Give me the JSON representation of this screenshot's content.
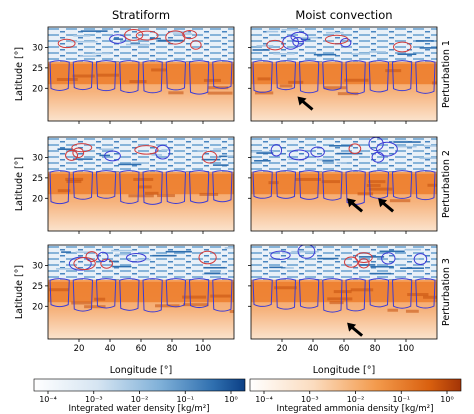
{
  "figure": {
    "column_titles": [
      "Stratiform",
      "Moist convection"
    ],
    "row_labels": [
      "Perturbation 1",
      "Perturbation 2",
      "Perturbation 3"
    ],
    "xlabel": "Longitude [°]",
    "ylabel": "Latitude [°]"
  },
  "chart_data": {
    "type": "heatmap",
    "panels": [
      {
        "row": 1,
        "column": "Stratiform",
        "arrows": []
      },
      {
        "row": 1,
        "column": "Moist convection",
        "arrows": [
          {
            "lon": 30,
            "lat": 18
          }
        ]
      },
      {
        "row": 2,
        "column": "Stratiform",
        "arrows": []
      },
      {
        "row": 2,
        "column": "Moist convection",
        "arrows": [
          {
            "lon": 62,
            "lat": 20
          },
          {
            "lon": 82,
            "lat": 20
          }
        ]
      },
      {
        "row": 3,
        "column": "Stratiform",
        "arrows": []
      },
      {
        "row": 3,
        "column": "Moist convection",
        "arrows": [
          {
            "lon": 62,
            "lat": 16
          }
        ]
      }
    ],
    "xlim": [
      0,
      120
    ],
    "ylim": [
      12,
      35
    ],
    "xticks": [
      "20",
      "40",
      "60",
      "80",
      "100"
    ],
    "xtick_values": [
      20,
      40,
      60,
      80,
      100
    ],
    "yticks": [
      "20",
      "25",
      "30"
    ],
    "ytick_values": [
      20,
      25,
      30
    ],
    "colorbars": [
      {
        "label": "Integrated water density [kg/m²]",
        "cmap": "white-to-blue",
        "scale": "log",
        "ticks": [
          "10⁻⁴",
          "10⁻³",
          "10⁻²",
          "10⁻¹",
          "10⁰"
        ]
      },
      {
        "label": "Integrated ammonia density [kg/m²]",
        "cmap": "white-to-orange",
        "scale": "log",
        "ticks": [
          "10⁻⁴",
          "10⁻³",
          "10⁻²",
          "10⁻¹",
          "10⁰"
        ]
      }
    ],
    "contour_colors": {
      "water_cloud": "#3b3bd6",
      "ammonia_cloud": "#d23a3a"
    },
    "colors": {
      "blue_dark": "#0b3f85",
      "blue_mid": "#5b95c6",
      "orange_dark": "#b13c06",
      "orange_mid": "#f0923f"
    }
  }
}
